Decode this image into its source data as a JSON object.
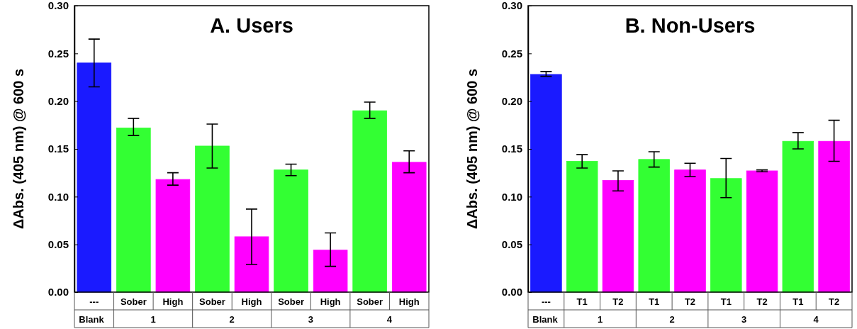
{
  "chart_data": [
    {
      "type": "bar",
      "title": "A. Users",
      "ylabel": "ΔAbs. (405 nm) @ 600 s",
      "categories": [
        "---",
        "Sober",
        "High",
        "Sober",
        "High",
        "Sober",
        "High",
        "Sober",
        "High"
      ],
      "values": [
        0.24,
        0.172,
        0.118,
        0.153,
        0.058,
        0.128,
        0.044,
        0.19,
        0.136
      ],
      "colors": [
        "#1a1aff",
        "#33ff33",
        "#ff00ff",
        "#33ff33",
        "#ff00ff",
        "#33ff33",
        "#ff00ff",
        "#33ff33",
        "#ff00ff"
      ],
      "errors": [
        [
          0.215,
          0.265
        ],
        [
          0.164,
          0.182
        ],
        [
          0.112,
          0.125
        ],
        [
          0.13,
          0.176
        ],
        [
          0.029,
          0.087
        ],
        [
          0.122,
          0.134
        ],
        [
          0.027,
          0.062
        ],
        [
          0.182,
          0.199
        ],
        [
          0.125,
          0.148
        ]
      ],
      "annotations": [
        "Blank",
        "1",
        "2",
        "3",
        "4"
      ],
      "ylim": [
        0,
        0.3
      ],
      "yticks": [
        {
          "value": 0,
          "label": "0.00"
        },
        {
          "value": 0.05,
          "label": "0.05"
        },
        {
          "value": 0.1,
          "label": "0.10"
        },
        {
          "value": 0.15,
          "label": "0.15"
        },
        {
          "value": 0.2,
          "label": "0.20"
        },
        {
          "value": 0.25,
          "label": "0.25"
        },
        {
          "value": 0.3,
          "label": "0.30"
        }
      ]
    },
    {
      "type": "bar",
      "title": "B. Non-Users",
      "ylabel": "ΔAbs. (405 nm) @ 600 s",
      "categories": [
        "---",
        "T1",
        "T2",
        "T1",
        "T2",
        "T1",
        "T2",
        "T1",
        "T2"
      ],
      "values": [
        0.228,
        0.137,
        0.117,
        0.139,
        0.128,
        0.119,
        0.127,
        0.158,
        0.158
      ],
      "colors": [
        "#1a1aff",
        "#33ff33",
        "#ff00ff",
        "#33ff33",
        "#ff00ff",
        "#33ff33",
        "#ff00ff",
        "#33ff33",
        "#ff00ff"
      ],
      "errors": [
        [
          0.226,
          0.231
        ],
        [
          0.13,
          0.144
        ],
        [
          0.106,
          0.127
        ],
        [
          0.131,
          0.147
        ],
        [
          0.121,
          0.135
        ],
        [
          0.099,
          0.14
        ],
        [
          0.126,
          0.128
        ],
        [
          0.15,
          0.167
        ],
        [
          0.137,
          0.18
        ]
      ],
      "annotations": [
        "Blank",
        "1",
        "2",
        "3",
        "4"
      ],
      "ylim": [
        0,
        0.3
      ],
      "yticks": [
        {
          "value": 0,
          "label": "0.00"
        },
        {
          "value": 0.05,
          "label": "0.05"
        },
        {
          "value": 0.1,
          "label": "0.10"
        },
        {
          "value": 0.15,
          "label": "0.15"
        },
        {
          "value": 0.2,
          "label": "0.20"
        },
        {
          "value": 0.25,
          "label": "0.25"
        },
        {
          "value": 0.3,
          "label": "0.30"
        }
      ]
    }
  ]
}
